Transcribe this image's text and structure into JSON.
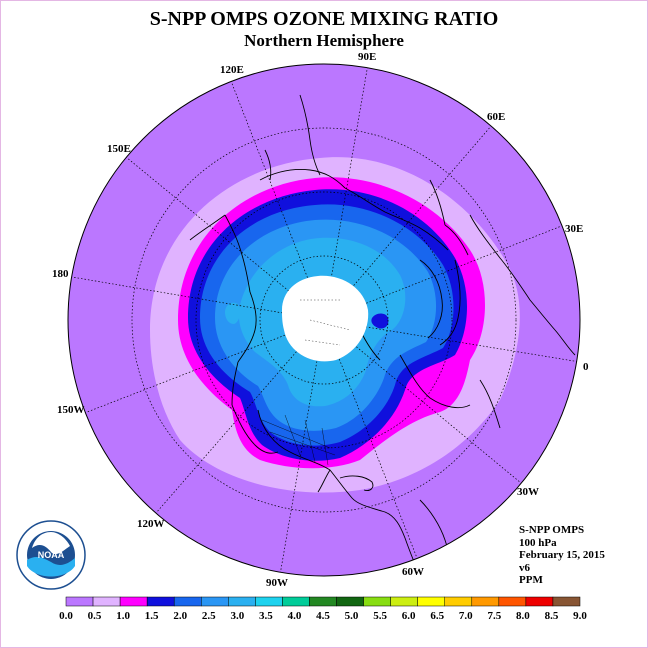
{
  "title": "S-NPP OMPS OZONE MIXING RATIO",
  "subtitle": "Northern Hemisphere",
  "longitude_labels": [
    "0",
    "30E",
    "60E",
    "90E",
    "120E",
    "150E",
    "180",
    "150W",
    "120W",
    "90W",
    "60W",
    "30W"
  ],
  "info": {
    "instrument": "S-NPP OMPS",
    "level": "100 hPa",
    "date": "February 15, 2015",
    "version": "v6",
    "units": "PPM"
  },
  "logo": {
    "text": "NOAA",
    "ring_text": "NATIONAL OCEANIC AND ATMOSPHERIC ADMINISTRATION · U.S. DEPARTMENT OF COMMERCE"
  },
  "colorbar": {
    "labels": [
      "0.0",
      "0.5",
      "1.0",
      "1.5",
      "2.0",
      "2.5",
      "3.0",
      "3.5",
      "4.0",
      "4.5",
      "5.0",
      "5.5",
      "6.0",
      "6.5",
      "7.0",
      "7.5",
      "8.0",
      "8.5",
      "9.0"
    ],
    "colors": [
      "#bb77ff",
      "#e0b3ff",
      "#ff00ff",
      "#1010dd",
      "#1866ee",
      "#2a96f4",
      "#2ab0f0",
      "#1ed2ee",
      "#00cc99",
      "#228822",
      "#116611",
      "#88dd11",
      "#ccee11",
      "#ffff00",
      "#ffcc00",
      "#ff9900",
      "#ff5500",
      "#ee0000",
      "#885533"
    ]
  },
  "map_colors": {
    "ring_0_0.5": "#bb77ff",
    "ring_0.5_1.0": "#e0b3ff",
    "ring_1.0_1.5": "#ff00ff",
    "ring_1.5_2.0": "#1010dd",
    "ring_2.0_2.5": "#1866ee",
    "ring_2.5_3.0": "#2a96f4",
    "ring_3.0_3.5": "#2ab0f0",
    "no_data": "#ffffff"
  }
}
